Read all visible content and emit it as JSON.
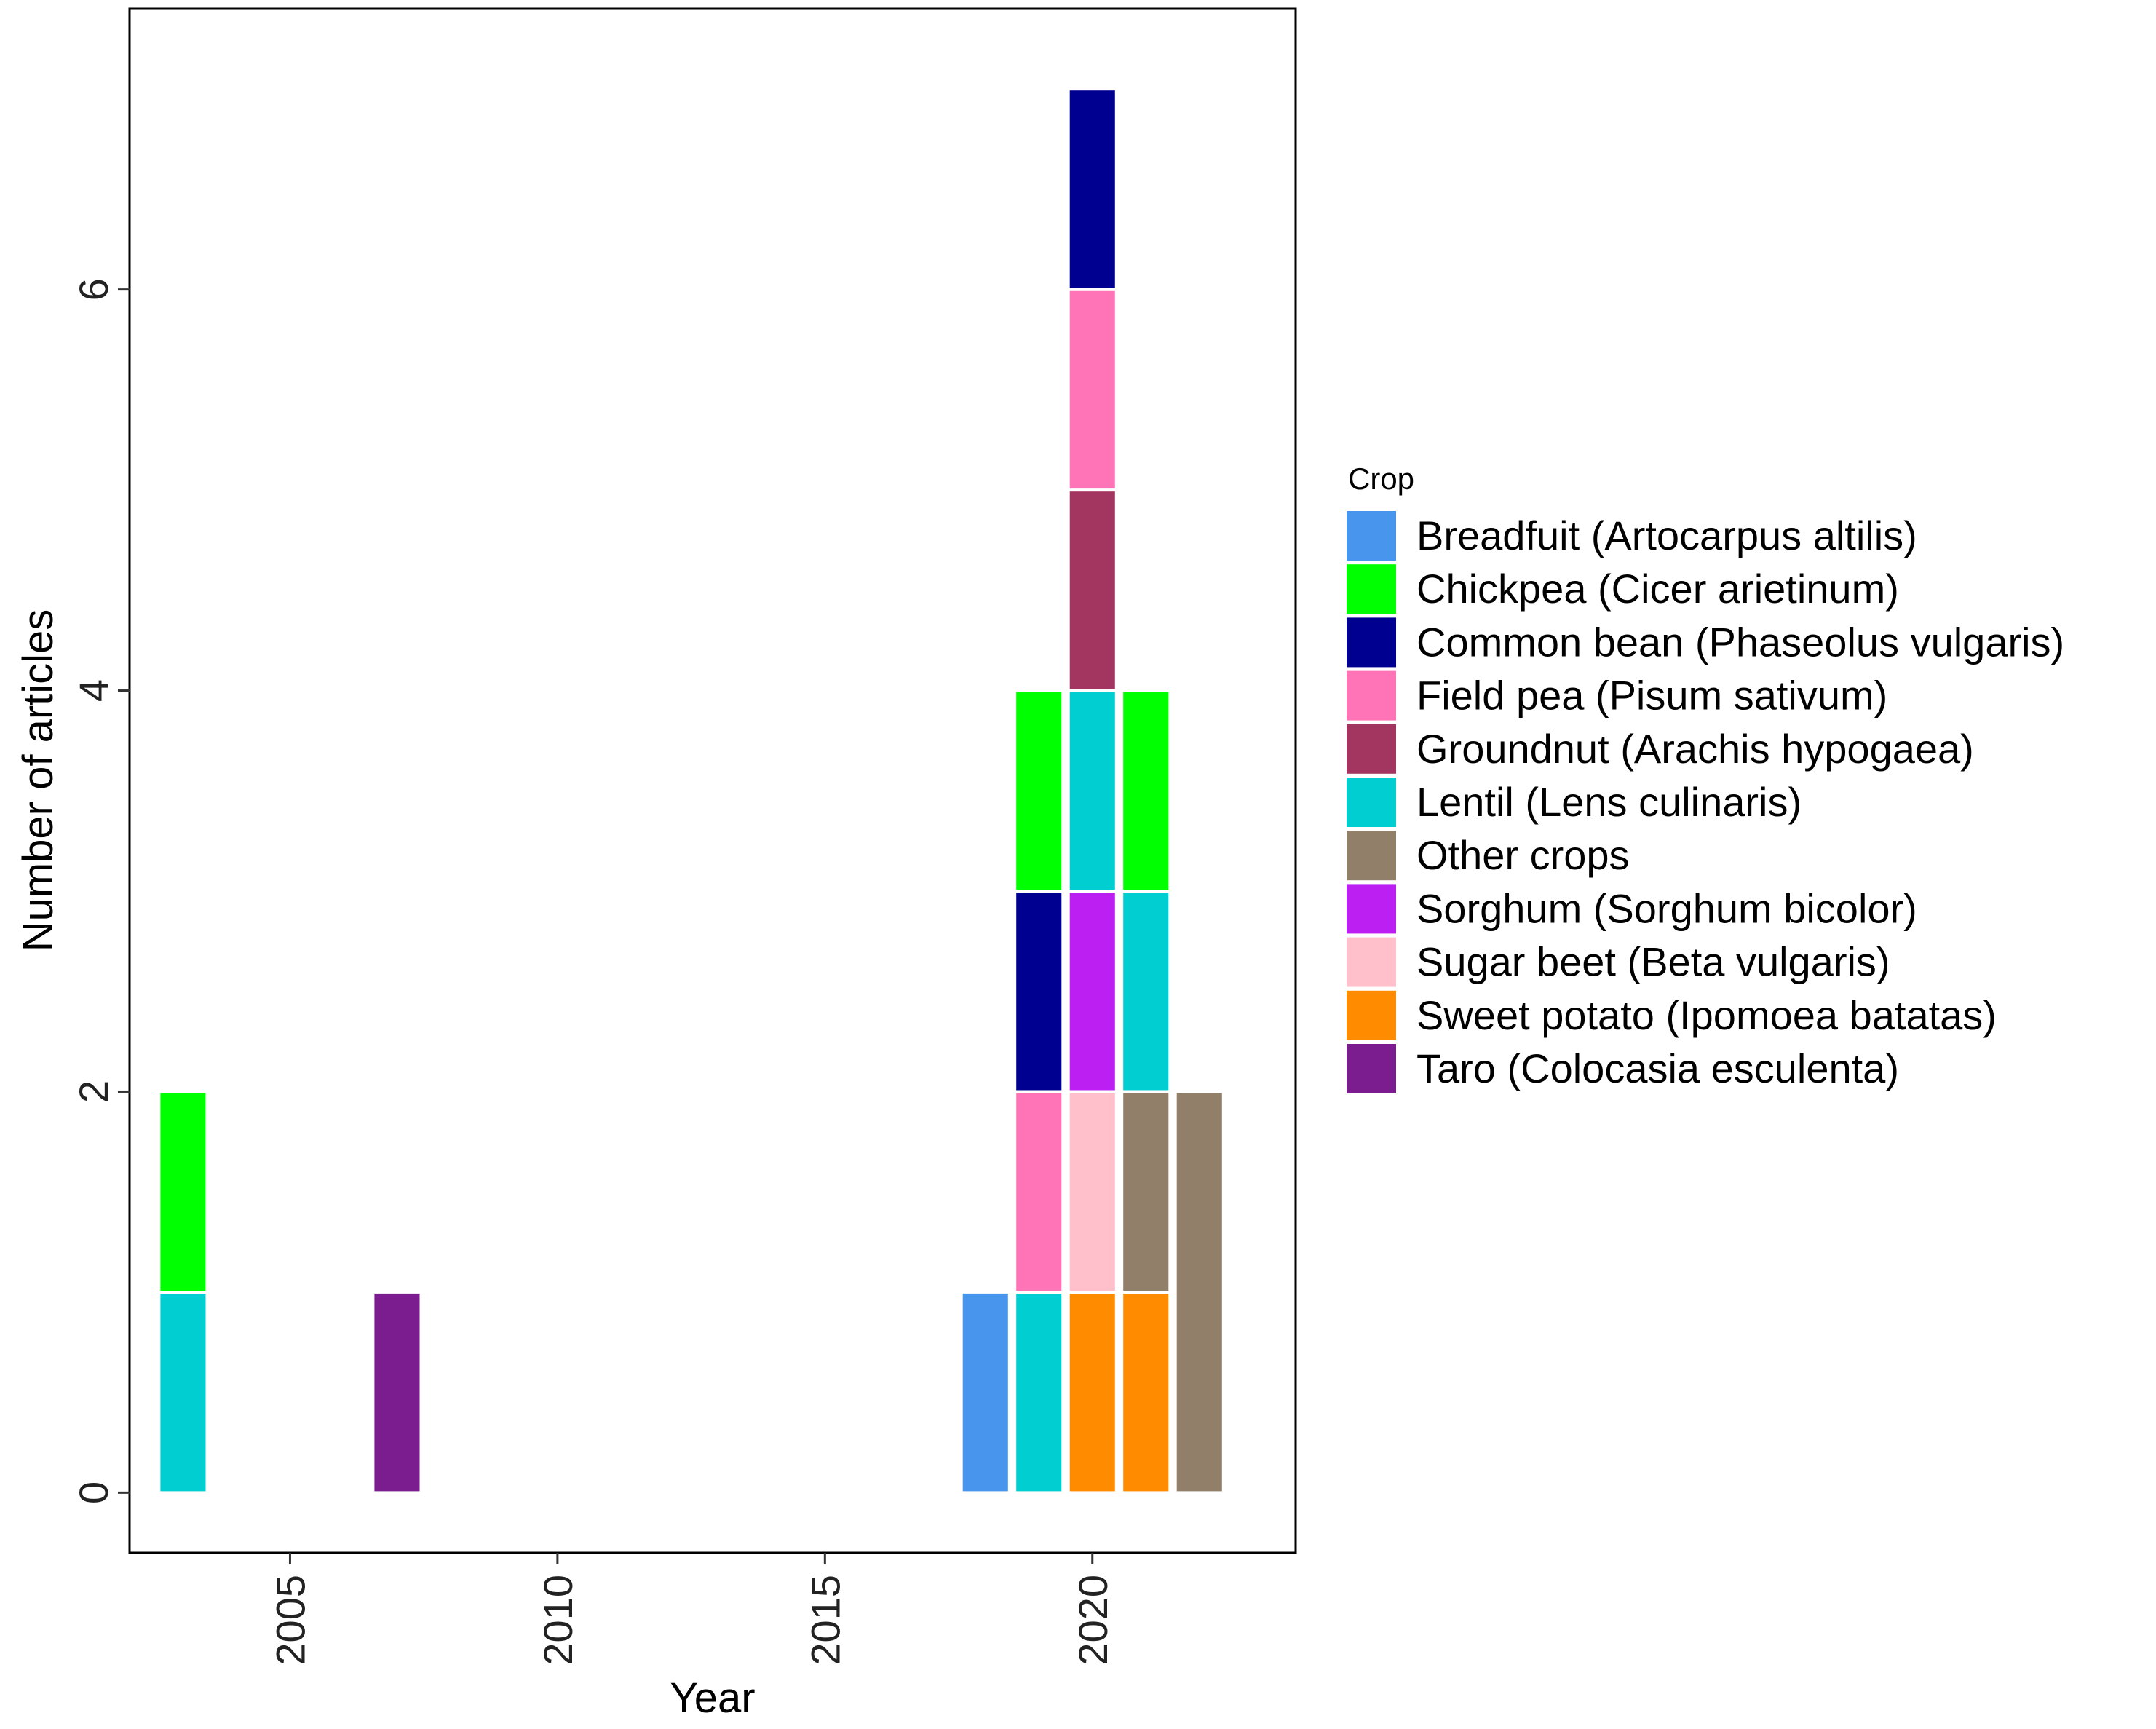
{
  "chart_data": {
    "type": "bar",
    "stacked": true,
    "xlabel": "Year",
    "ylabel": "Number of articles",
    "xlim": [
      2002,
      2023.8
    ],
    "ylim": [
      -0.3,
      7.4
    ],
    "x_ticks": [
      2005,
      2010,
      2015,
      2020
    ],
    "y_ticks": [
      0,
      2,
      4,
      6
    ],
    "grid": false,
    "legend": {
      "title": "Crop",
      "position": "right",
      "items": [
        {
          "key": "breadfruit",
          "label": "Breadfuit (Artocarpus altilis)",
          "color": "#4895ed"
        },
        {
          "key": "chickpea",
          "label": "Chickpea (Cicer arietinum)",
          "color": "#00ff00"
        },
        {
          "key": "common_bean",
          "label": "Common bean (Phaseolus vulgaris)",
          "color": "#000090"
        },
        {
          "key": "field_pea",
          "label": "Field pea (Pisum sativum)",
          "color": "#ff74b6"
        },
        {
          "key": "groundnut",
          "label": "Groundnut (Arachis hypogaea)",
          "color": "#a33660"
        },
        {
          "key": "lentil",
          "label": "Lentil (Lens culinaris)",
          "color": "#00ced1"
        },
        {
          "key": "other",
          "label": "Other crops",
          "color": "#917f6a"
        },
        {
          "key": "sorghum",
          "label": "Sorghum (Sorghum bicolor)",
          "color": "#bb1ff2"
        },
        {
          "key": "sugar_beet",
          "label": "Sugar beet (Beta vulgaris)",
          "color": "#ffc0cb"
        },
        {
          "key": "sweet_potato",
          "label": "Sweet potato (Ipomoea batatas)",
          "color": "#ff8c00"
        },
        {
          "key": "taro",
          "label": "Taro (Colocasia esculenta)",
          "color": "#7b1d8e"
        }
      ]
    },
    "bars": [
      {
        "year": 2003,
        "stack": [
          {
            "crop": "lentil",
            "value": 1
          },
          {
            "crop": "chickpea",
            "value": 1
          }
        ]
      },
      {
        "year": 2007,
        "stack": [
          {
            "crop": "taro",
            "value": 1
          }
        ]
      },
      {
        "year": 2018,
        "stack": [
          {
            "crop": "breadfruit",
            "value": 1
          }
        ]
      },
      {
        "year": 2019,
        "stack": [
          {
            "crop": "lentil",
            "value": 1
          },
          {
            "crop": "field_pea",
            "value": 1
          },
          {
            "crop": "common_bean",
            "value": 1
          },
          {
            "crop": "chickpea",
            "value": 1
          }
        ]
      },
      {
        "year": 2020,
        "stack": [
          {
            "crop": "sweet_potato",
            "value": 1
          },
          {
            "crop": "sugar_beet",
            "value": 1
          },
          {
            "crop": "sorghum",
            "value": 1
          },
          {
            "crop": "lentil",
            "value": 1
          },
          {
            "crop": "groundnut",
            "value": 1
          },
          {
            "crop": "field_pea",
            "value": 1
          },
          {
            "crop": "common_bean",
            "value": 1
          }
        ]
      },
      {
        "year": 2021,
        "stack": [
          {
            "crop": "sweet_potato",
            "value": 1
          },
          {
            "crop": "other",
            "value": 1
          },
          {
            "crop": "lentil",
            "value": 1
          },
          {
            "crop": "chickpea",
            "value": 1
          }
        ]
      },
      {
        "year": 2022,
        "stack": [
          {
            "crop": "other",
            "value": 2
          }
        ]
      }
    ]
  }
}
